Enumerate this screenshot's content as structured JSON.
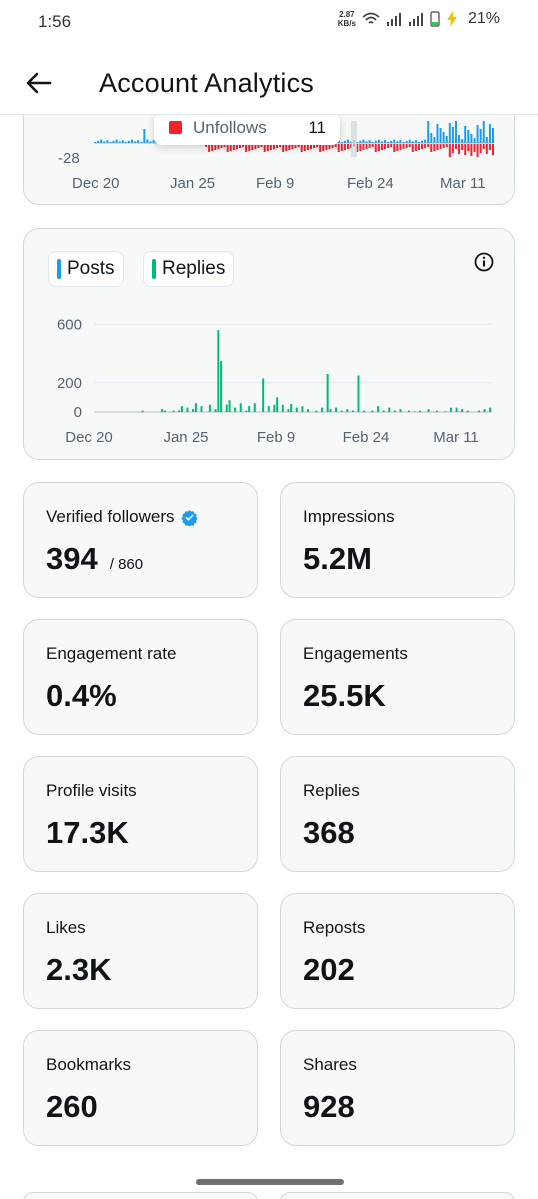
{
  "status": {
    "time": "1:56",
    "net_speed_value": "2.87",
    "net_speed_unit": "KB/s",
    "battery": "21%"
  },
  "header": {
    "title": "Account Analytics"
  },
  "followers_chart": {
    "y_tick_min": "-28",
    "x_ticks": [
      "Dec 20",
      "Jan 25",
      "Feb 9",
      "Feb 24",
      "Mar 11"
    ],
    "tooltip": {
      "label": "Unfollows",
      "value": "11",
      "swatch_color": "#f4212e"
    },
    "colors": {
      "follows": "#1d9bf0",
      "unfollows": "#f4212e"
    }
  },
  "posts_chart": {
    "legend": [
      {
        "label": "Posts",
        "color": "#1d9bf0"
      },
      {
        "label": "Replies",
        "color": "#00ba7c"
      }
    ],
    "info_icon": "info-icon"
  },
  "chart_data": {
    "type": "bar",
    "x_ticks": [
      "Dec 20",
      "Jan 25",
      "Feb 9",
      "Feb 24",
      "Mar 11"
    ],
    "y_ticks": [
      0,
      200,
      600
    ],
    "ylim": [
      0,
      650
    ],
    "series": [
      {
        "name": "Replies",
        "values": [
          0,
          0,
          0,
          0,
          0,
          0,
          0,
          0,
          0,
          0,
          0,
          0,
          0,
          0,
          0,
          0,
          0,
          10,
          0,
          0,
          0,
          0,
          0,
          0,
          20,
          10,
          0,
          0,
          10,
          0,
          10,
          40,
          0,
          30,
          0,
          20,
          60,
          0,
          40,
          0,
          0,
          50,
          0,
          20,
          0,
          30,
          0,
          50,
          80,
          0,
          30,
          0,
          60,
          0,
          10,
          40,
          0,
          60,
          0,
          0,
          45,
          0,
          40,
          0,
          50,
          100,
          0,
          50,
          0,
          20,
          55,
          0,
          30,
          0,
          40,
          0,
          20,
          0,
          0,
          10,
          0,
          30,
          0,
          0,
          20,
          0,
          30,
          0,
          10,
          0,
          20,
          0,
          10,
          0,
          30,
          0,
          10,
          0,
          0,
          10,
          0,
          40,
          0,
          10,
          0,
          30,
          0,
          10,
          0,
          20,
          0,
          0,
          10,
          0,
          5,
          0,
          10,
          0,
          0,
          20,
          0,
          0,
          10,
          0,
          0,
          5,
          0,
          30,
          0,
          30,
          0,
          20,
          0,
          10,
          0,
          0,
          0,
          10,
          0,
          20,
          0,
          30,
          0
        ],
        "color": "#00ba7c"
      }
    ],
    "notable_points": [
      {
        "x": "Jan 25",
        "value": 560
      },
      {
        "x": "Jan 25+",
        "value": 350
      },
      {
        "x": "Feb 9-",
        "value": 230
      },
      {
        "x": "Feb 24-",
        "value": 260
      },
      {
        "x": "Mar 1",
        "value": 250
      }
    ]
  },
  "metrics": [
    {
      "label": "Verified followers",
      "value": "394",
      "sub": "/ 860",
      "verified": true
    },
    {
      "label": "Impressions",
      "value": "5.2M"
    },
    {
      "label": "Engagement rate",
      "value": "0.4%"
    },
    {
      "label": "Engagements",
      "value": "25.5K"
    },
    {
      "label": "Profile visits",
      "value": "17.3K"
    },
    {
      "label": "Replies",
      "value": "368"
    },
    {
      "label": "Likes",
      "value": "2.3K"
    },
    {
      "label": "Reposts",
      "value": "202"
    },
    {
      "label": "Bookmarks",
      "value": "260"
    },
    {
      "label": "Shares",
      "value": "928"
    }
  ]
}
